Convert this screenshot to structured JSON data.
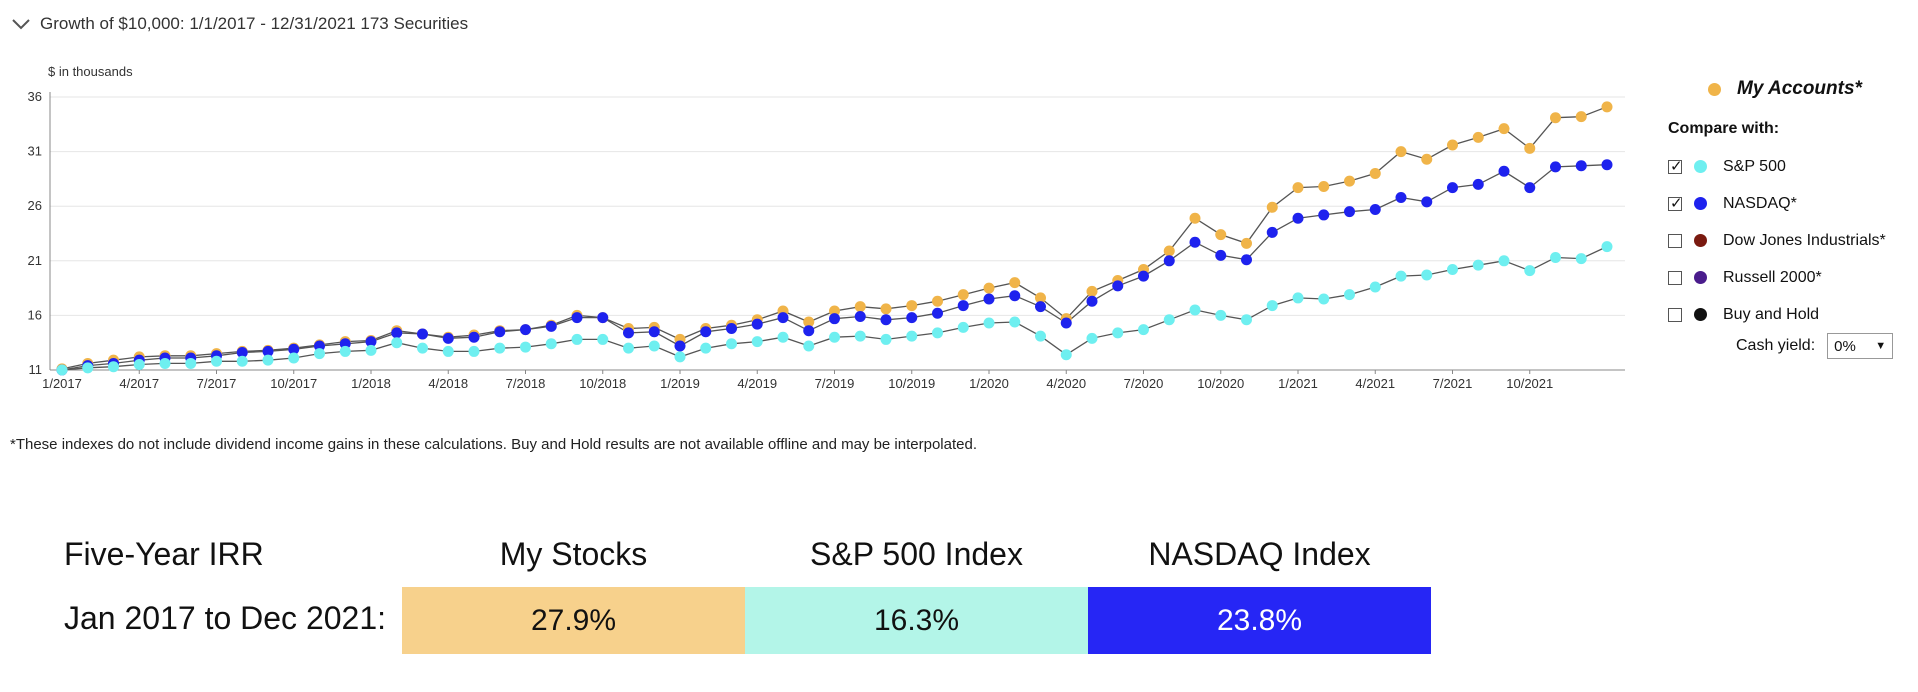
{
  "header": {
    "title": "Growth of $10,000:  1/1/2017 - 12/31/2021  173 Securities",
    "collapse_icon": "chevron-down-icon"
  },
  "units_label": "$ in thousands",
  "legend": {
    "primary": {
      "label": "My Accounts*",
      "color": "#F0B449"
    },
    "compare_label": "Compare with:",
    "items": [
      {
        "label": "S&P 500",
        "color": "#6EEFF0",
        "checked": true
      },
      {
        "label": "NASDAQ*",
        "color": "#1E22EE",
        "checked": true
      },
      {
        "label": "Dow Jones Industrials*",
        "color": "#7A1A10",
        "checked": false
      },
      {
        "label": "Russell 2000*",
        "color": "#4A1C8C",
        "checked": false
      },
      {
        "label": "Buy and Hold",
        "color": "#111111",
        "checked": false
      }
    ],
    "cash_yield_label": "Cash yield:",
    "cash_yield_value": "0%"
  },
  "footnote": "*These indexes do not include dividend income gains in these calculations. Buy and Hold results are not available offline and may be interpolated.",
  "irr": {
    "title": "Five-Year IRR",
    "period": "Jan 2017 to Dec 2021:",
    "columns": [
      {
        "label": "My Stocks",
        "value": "27.9%",
        "color": "#F7D18C",
        "text_color": "#111111"
      },
      {
        "label": "S&P 500 Index",
        "value": "16.3%",
        "color": "#B3F5E8",
        "text_color": "#111111"
      },
      {
        "label": "NASDAQ Index",
        "value": "23.8%",
        "color": "#2626F5",
        "text_color": "#ffffff"
      }
    ]
  },
  "chart_data": {
    "type": "line",
    "title": "Growth of $10,000:  1/1/2017 - 12/31/2021  173 Securities",
    "ylabel": "$ in thousands",
    "ylim": [
      11,
      36
    ],
    "yticks": [
      11,
      16,
      21,
      26,
      31,
      36
    ],
    "grid": "horizontal",
    "x_start": "1/2017",
    "x_step": "1 month",
    "xtick_labels": [
      "1/2017",
      "4/2017",
      "7/2017",
      "10/2017",
      "1/2018",
      "4/2018",
      "7/2018",
      "10/2018",
      "1/2019",
      "4/2019",
      "7/2019",
      "10/2019",
      "1/2020",
      "4/2020",
      "7/2020",
      "10/2020",
      "1/2021",
      "4/2021",
      "7/2021",
      "10/2021"
    ],
    "series": [
      {
        "name": "My Accounts*",
        "color": "#F0B449",
        "values": [
          11.1,
          11.6,
          11.9,
          12.2,
          12.3,
          12.3,
          12.5,
          12.7,
          12.8,
          13.0,
          13.3,
          13.6,
          13.7,
          14.6,
          14.3,
          14.0,
          14.2,
          14.6,
          14.7,
          15.1,
          16.0,
          15.8,
          14.8,
          14.9,
          13.8,
          14.8,
          15.1,
          15.6,
          16.4,
          15.4,
          16.4,
          16.8,
          16.6,
          16.9,
          17.3,
          17.9,
          18.5,
          19.0,
          17.6,
          15.7,
          18.2,
          19.2,
          20.2,
          21.9,
          24.9,
          23.4,
          22.6,
          25.9,
          27.7,
          27.8,
          28.3,
          29.0,
          31.0,
          30.3,
          31.6,
          32.3,
          33.1,
          31.3,
          34.1,
          34.2,
          35.1
        ]
      },
      {
        "name": "NASDAQ*",
        "color": "#1E22EE",
        "values": [
          11.0,
          11.4,
          11.6,
          11.9,
          12.1,
          12.1,
          12.3,
          12.6,
          12.7,
          12.9,
          13.2,
          13.4,
          13.6,
          14.4,
          14.3,
          13.9,
          14.0,
          14.5,
          14.7,
          15.0,
          15.8,
          15.8,
          14.4,
          14.5,
          13.2,
          14.5,
          14.8,
          15.2,
          15.8,
          14.6,
          15.7,
          15.9,
          15.6,
          15.8,
          16.2,
          16.9,
          17.5,
          17.8,
          16.8,
          15.3,
          17.3,
          18.7,
          19.6,
          21.0,
          22.7,
          21.5,
          21.1,
          23.6,
          24.9,
          25.2,
          25.5,
          25.7,
          26.8,
          26.4,
          27.7,
          28.0,
          29.2,
          27.7,
          29.6,
          29.7,
          29.8
        ]
      },
      {
        "name": "S&P 500",
        "color": "#6EEFF0",
        "values": [
          11.0,
          11.2,
          11.3,
          11.5,
          11.6,
          11.6,
          11.8,
          11.8,
          11.9,
          12.1,
          12.5,
          12.7,
          12.8,
          13.5,
          13.0,
          12.7,
          12.7,
          13.0,
          13.1,
          13.4,
          13.8,
          13.8,
          13.0,
          13.2,
          12.2,
          13.0,
          13.4,
          13.6,
          14.0,
          13.2,
          14.0,
          14.1,
          13.8,
          14.1,
          14.4,
          14.9,
          15.3,
          15.4,
          14.1,
          12.4,
          13.9,
          14.4,
          14.7,
          15.6,
          16.5,
          16.0,
          15.6,
          16.9,
          17.6,
          17.5,
          17.9,
          18.6,
          19.6,
          19.7,
          20.2,
          20.6,
          21.0,
          20.1,
          21.3,
          21.2,
          22.3
        ]
      }
    ]
  }
}
